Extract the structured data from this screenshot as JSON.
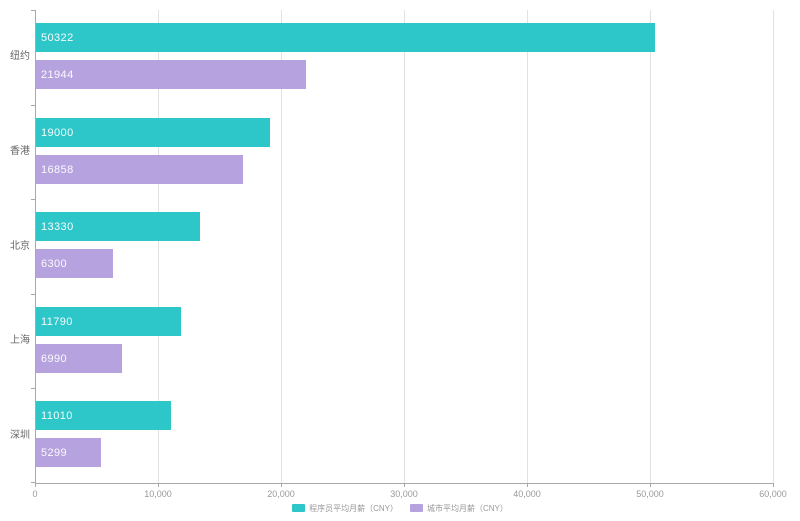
{
  "chart_data": {
    "type": "bar",
    "orientation": "horizontal",
    "title": "",
    "categories": [
      "纽约",
      "香港",
      "北京",
      "上海",
      "深圳"
    ],
    "series": [
      {
        "name": "程序员平均月薪（CNY）",
        "color": "#2ec7c9",
        "values": [
          50322,
          19000,
          13330,
          11790,
          11010
        ]
      },
      {
        "name": "城市平均月薪（CNY）",
        "color": "#b6a2de",
        "values": [
          21944,
          16858,
          6300,
          6990,
          5299
        ]
      }
    ],
    "x_axis": {
      "min": 0,
      "max": 60000,
      "tick_interval": 10000,
      "tick_labels": [
        "0",
        "10,000",
        "20,000",
        "30,000",
        "40,000",
        "50,000",
        "60,000"
      ]
    },
    "y_axis": {
      "label": ""
    },
    "grid": true,
    "legend_position": "bottom",
    "value_labels": "inside-left",
    "value_label_color": "#ffffff",
    "axis_text_color": "#999999",
    "category_text_color": "#666666",
    "gridline_color": "#e1e1e1",
    "axis_line_color": "#a8a8a8",
    "background": "#ffffff"
  }
}
